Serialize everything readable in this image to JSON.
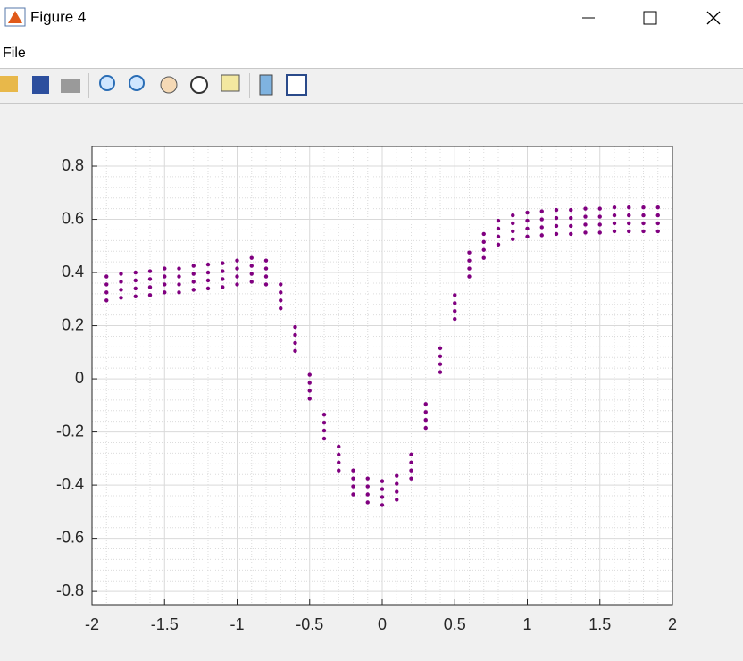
{
  "window": {
    "title": "Figure 4",
    "menu": [
      "File"
    ]
  },
  "chart_data": {
    "type": "scatter",
    "color": "#800080",
    "grid": true,
    "minor_grid": true,
    "xlim": [
      -2,
      2
    ],
    "ylim": [
      -0.85,
      0.874
    ],
    "xticks": [
      -2,
      -1.5,
      -1,
      -0.5,
      0,
      0.5,
      1,
      1.5,
      2
    ],
    "yticks": [
      -0.8,
      -0.6,
      -0.4,
      -0.2,
      0,
      0.2,
      0.4,
      0.6,
      0.8
    ],
    "x": [
      -1.9,
      -1.9,
      -1.9,
      -1.9,
      -1.8,
      -1.8,
      -1.8,
      -1.8,
      -1.7,
      -1.7,
      -1.7,
      -1.7,
      -1.6,
      -1.6,
      -1.6,
      -1.6,
      -1.5,
      -1.5,
      -1.5,
      -1.5,
      -1.4,
      -1.4,
      -1.4,
      -1.4,
      -1.3,
      -1.3,
      -1.3,
      -1.3,
      -1.2,
      -1.2,
      -1.2,
      -1.2,
      -1.1,
      -1.1,
      -1.1,
      -1.1,
      -1.0,
      -1.0,
      -1.0,
      -1.0,
      -0.9,
      -0.9,
      -0.9,
      -0.9,
      -0.8,
      -0.8,
      -0.8,
      -0.8,
      -0.7,
      -0.7,
      -0.7,
      -0.7,
      -0.6,
      -0.6,
      -0.6,
      -0.6,
      -0.5,
      -0.5,
      -0.5,
      -0.5,
      -0.4,
      -0.4,
      -0.4,
      -0.4,
      -0.3,
      -0.3,
      -0.3,
      -0.3,
      -0.2,
      -0.2,
      -0.2,
      -0.2,
      -0.1,
      -0.1,
      -0.1,
      -0.1,
      0,
      0,
      0,
      0,
      0.1,
      0.1,
      0.1,
      0.1,
      0.2,
      0.2,
      0.2,
      0.2,
      0.3,
      0.3,
      0.3,
      0.3,
      0.4,
      0.4,
      0.4,
      0.4,
      0.5,
      0.5,
      0.5,
      0.5,
      0.6,
      0.6,
      0.6,
      0.6,
      0.7,
      0.7,
      0.7,
      0.7,
      0.8,
      0.8,
      0.8,
      0.8,
      0.9,
      0.9,
      0.9,
      0.9,
      1.0,
      1.0,
      1.0,
      1.0,
      1.1,
      1.1,
      1.1,
      1.1,
      1.2,
      1.2,
      1.2,
      1.2,
      1.3,
      1.3,
      1.3,
      1.3,
      1.4,
      1.4,
      1.4,
      1.4,
      1.5,
      1.5,
      1.5,
      1.5,
      1.6,
      1.6,
      1.6,
      1.6,
      1.7,
      1.7,
      1.7,
      1.7,
      1.8,
      1.8,
      1.8,
      1.8,
      1.9,
      1.9,
      1.9,
      1.9
    ],
    "y": [
      0.295,
      0.325,
      0.355,
      0.385,
      0.305,
      0.335,
      0.365,
      0.395,
      0.31,
      0.34,
      0.37,
      0.4,
      0.315,
      0.345,
      0.375,
      0.405,
      0.325,
      0.355,
      0.385,
      0.415,
      0.325,
      0.355,
      0.385,
      0.415,
      0.335,
      0.365,
      0.395,
      0.425,
      0.34,
      0.37,
      0.4,
      0.43,
      0.345,
      0.375,
      0.405,
      0.435,
      0.355,
      0.385,
      0.415,
      0.445,
      0.365,
      0.395,
      0.425,
      0.455,
      0.355,
      0.385,
      0.415,
      0.445,
      0.265,
      0.295,
      0.325,
      0.355,
      0.105,
      0.135,
      0.165,
      0.195,
      -0.075,
      -0.045,
      -0.015,
      0.015,
      -0.225,
      -0.195,
      -0.165,
      -0.135,
      -0.345,
      -0.315,
      -0.285,
      -0.255,
      -0.435,
      -0.405,
      -0.375,
      -0.345,
      -0.465,
      -0.435,
      -0.405,
      -0.375,
      -0.475,
      -0.445,
      -0.415,
      -0.385,
      -0.455,
      -0.425,
      -0.395,
      -0.365,
      -0.375,
      -0.345,
      -0.315,
      -0.285,
      -0.185,
      -0.155,
      -0.125,
      -0.095,
      0.025,
      0.055,
      0.085,
      0.115,
      0.225,
      0.255,
      0.285,
      0.315,
      0.385,
      0.415,
      0.445,
      0.475,
      0.455,
      0.485,
      0.515,
      0.545,
      0.505,
      0.535,
      0.565,
      0.595,
      0.525,
      0.555,
      0.585,
      0.615,
      0.535,
      0.565,
      0.595,
      0.625,
      0.54,
      0.57,
      0.6,
      0.63,
      0.545,
      0.575,
      0.605,
      0.635,
      0.545,
      0.575,
      0.605,
      0.635,
      0.55,
      0.58,
      0.61,
      0.64,
      0.55,
      0.58,
      0.61,
      0.64,
      0.555,
      0.585,
      0.615,
      0.645,
      0.555,
      0.585,
      0.615,
      0.645,
      0.555,
      0.585,
      0.615,
      0.645,
      0.555,
      0.585,
      0.615,
      0.645
    ]
  }
}
